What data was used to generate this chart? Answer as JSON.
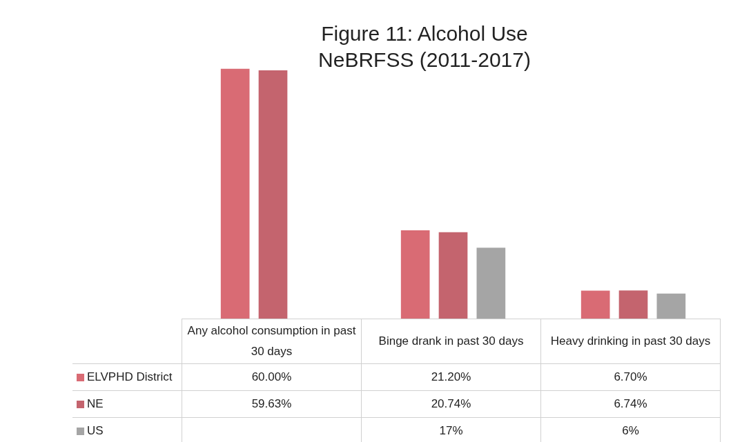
{
  "chart_data": {
    "type": "bar",
    "title": "Figure 11: Alcohol Use NeBRFSS (2011-2017)",
    "categories": [
      "Any alcohol consumption in past 30 days",
      "Binge drank in past 30 days",
      "Heavy drinking in past 30 days"
    ],
    "legend": "bottom left",
    "series": [
      {
        "name": "ELVPHD District",
        "color": "#d96b74",
        "values": [
          60.0,
          21.2,
          6.7
        ],
        "value_labels": [
          "60.00%",
          "21.20%",
          "6.70%"
        ]
      },
      {
        "name": "NE",
        "color": "#c4646e",
        "values": [
          59.63,
          20.74,
          6.74
        ],
        "value_labels": [
          "59.63%",
          "20.74%",
          "6.74%"
        ]
      },
      {
        "name": "US",
        "color": "#a5a5a5",
        "values": [
          null,
          17,
          6
        ],
        "value_labels": [
          null,
          "17%",
          "6%"
        ]
      }
    ]
  }
}
